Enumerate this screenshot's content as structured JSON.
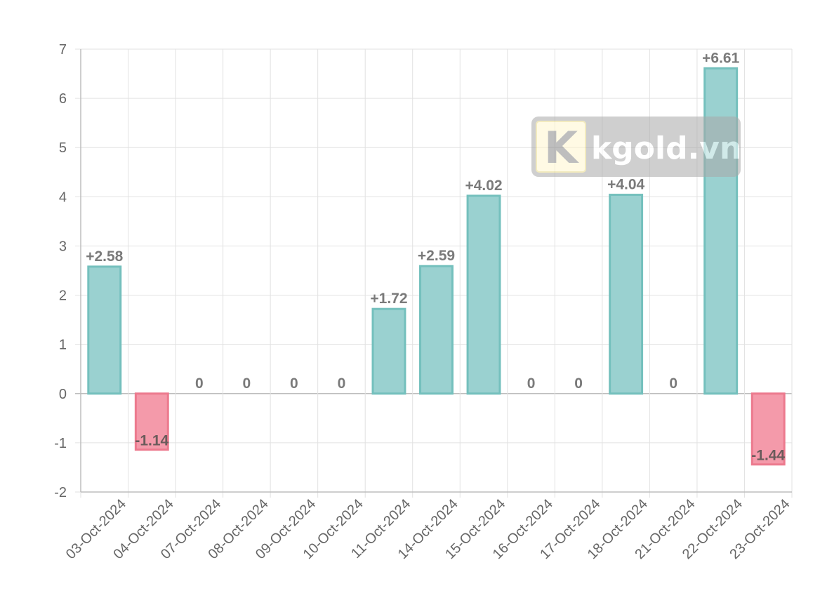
{
  "chart_data": {
    "type": "bar",
    "title": "",
    "xlabel": "",
    "ylabel": "",
    "categories": [
      "03-Oct-2024",
      "04-Oct-2024",
      "07-Oct-2024",
      "08-Oct-2024",
      "09-Oct-2024",
      "10-Oct-2024",
      "11-Oct-2024",
      "14-Oct-2024",
      "15-Oct-2024",
      "16-Oct-2024",
      "17-Oct-2024",
      "18-Oct-2024",
      "21-Oct-2024",
      "22-Oct-2024",
      "23-Oct-2024"
    ],
    "values": [
      2.58,
      -1.14,
      0,
      0,
      0,
      0,
      1.72,
      2.59,
      4.02,
      0,
      0,
      4.04,
      0,
      6.61,
      -1.44
    ],
    "labels": [
      "+2.58",
      "-1.14",
      "0",
      "0",
      "0",
      "0",
      "+1.72",
      "+2.59",
      "+4.02",
      "0",
      "0",
      "+4.04",
      "0",
      "+6.61",
      "-1.44"
    ],
    "ylim": [
      -2,
      7
    ],
    "yticks": [
      "7",
      "6",
      "5",
      "4",
      "3",
      "2",
      "1",
      "0",
      "-1",
      "-2"
    ],
    "grid": true,
    "legend": "none",
    "colors": {
      "positive_fill": "#9ad1d0",
      "positive_stroke": "#74c0bd",
      "negative_fill": "#f49aaa",
      "negative_stroke": "#ec7a8e"
    }
  },
  "watermark": {
    "logo_letter": "K",
    "text": "kgold.vn"
  }
}
